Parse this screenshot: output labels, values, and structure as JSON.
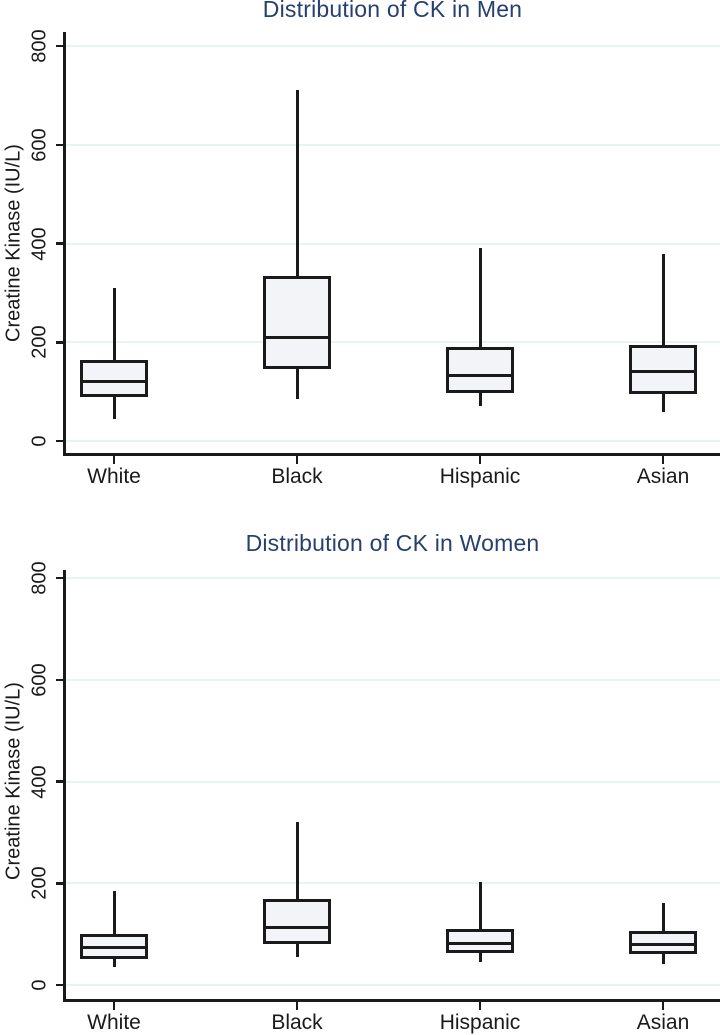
{
  "colors": {
    "title": "#28406e",
    "axis": "#1a1a1a",
    "gridline": "#e9f3ef",
    "box_fill": "#f2f4f7",
    "box_border": "#1a1a1a",
    "background": "#ffffff"
  },
  "chart_data": [
    {
      "type": "box",
      "title": "Distribution of CK in Men",
      "xlabel": "",
      "ylabel": "Creatine Kinase (IU/L)",
      "categories": [
        "White",
        "Black",
        "Hispanic",
        "Asian"
      ],
      "yticks": [
        0,
        200,
        400,
        600,
        800
      ],
      "ylim": [
        0,
        828
      ],
      "grid": true,
      "legend": "none",
      "series": [
        {
          "category": "White",
          "whisker_low": 45,
          "q1": 90,
          "median": 120,
          "q3": 165,
          "whisker_high": 310
        },
        {
          "category": "Black",
          "whisker_low": 85,
          "q1": 145,
          "median": 210,
          "q3": 335,
          "whisker_high": 710
        },
        {
          "category": "Hispanic",
          "whisker_low": 70,
          "q1": 97,
          "median": 133,
          "q3": 190,
          "whisker_high": 390
        },
        {
          "category": "Asian",
          "whisker_low": 58,
          "q1": 96,
          "median": 140,
          "q3": 195,
          "whisker_high": 378
        }
      ]
    },
    {
      "type": "box",
      "title": "Distribution of CK in Women",
      "xlabel": "",
      "ylabel": "Creatine Kinase (IU/L)",
      "categories": [
        "White",
        "Black",
        "Hispanic",
        "Asian"
      ],
      "yticks": [
        0,
        200,
        400,
        600,
        800
      ],
      "ylim": [
        0,
        815
      ],
      "grid": true,
      "legend": "none",
      "series": [
        {
          "category": "White",
          "whisker_low": 35,
          "q1": 52,
          "median": 74,
          "q3": 100,
          "whisker_high": 185
        },
        {
          "category": "Black",
          "whisker_low": 55,
          "q1": 80,
          "median": 113,
          "q3": 170,
          "whisker_high": 320
        },
        {
          "category": "Hispanic",
          "whisker_low": 45,
          "q1": 62,
          "median": 82,
          "q3": 110,
          "whisker_high": 203
        },
        {
          "category": "Asian",
          "whisker_low": 42,
          "q1": 60,
          "median": 80,
          "q3": 107,
          "whisker_high": 162
        }
      ]
    }
  ]
}
